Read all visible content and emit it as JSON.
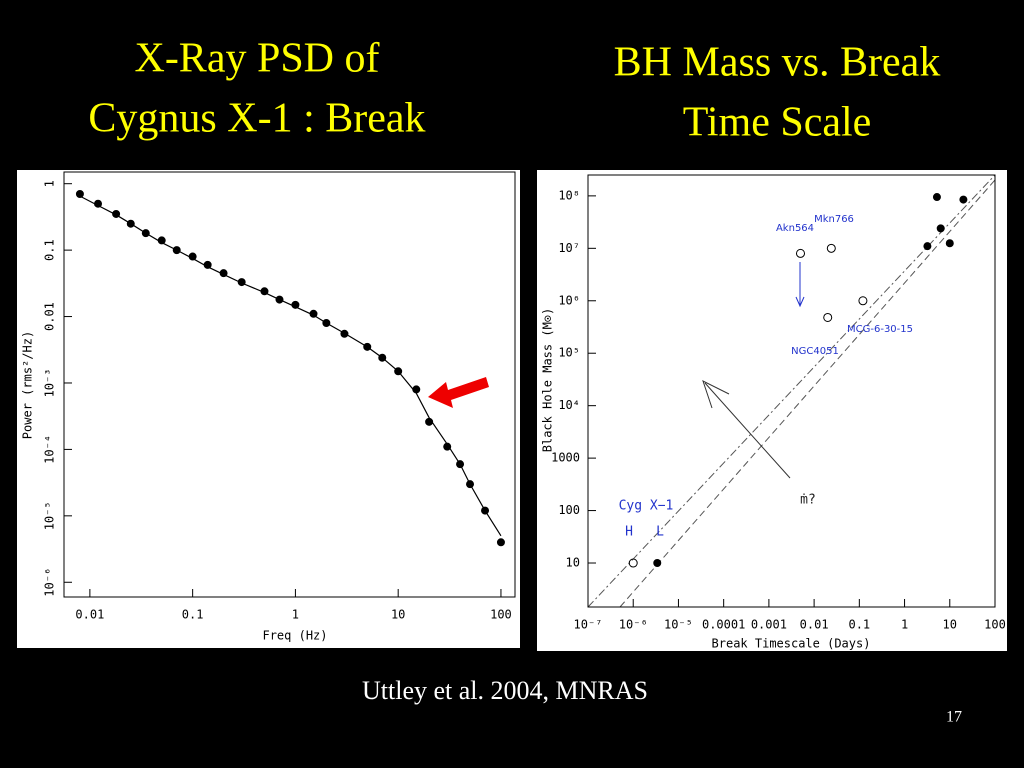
{
  "slide": {
    "title_left": [
      "X-Ray PSD of",
      "Cygnus X-1 : Break"
    ],
    "title_right": [
      "BH Mass vs. Break",
      "Time Scale"
    ],
    "citation": "Uttley et al. 2004, MNRAS",
    "page_number": "17"
  },
  "chart_data": [
    {
      "type": "scatter",
      "x_label": "Freq (Hz)",
      "y_label": "Power (rms²/Hz)",
      "xlog": true,
      "ylog": true,
      "x": [
        0.008,
        0.012,
        0.018,
        0.025,
        0.035,
        0.05,
        0.07,
        0.1,
        0.14,
        0.2,
        0.3,
        0.5,
        0.7,
        1,
        1.5,
        2,
        3,
        5,
        7,
        10,
        15,
        20,
        30,
        40,
        50,
        70,
        100
      ],
      "series": [
        {
          "color": "#000000",
          "marker": "filled",
          "values": [
            0.7,
            0.5,
            0.35,
            0.25,
            0.18,
            0.14,
            0.1,
            0.08,
            0.06,
            0.045,
            0.033,
            0.024,
            0.018,
            0.015,
            0.011,
            0.008,
            0.0055,
            0.0035,
            0.0024,
            0.0015,
            0.0008,
            0.00026,
            0.00011,
            6e-05,
            3e-05,
            1.2e-05,
            4e-06
          ]
        },
        {
          "color": "#000000",
          "marker": "line",
          "values": [
            0.65,
            0.47,
            0.34,
            0.25,
            0.18,
            0.13,
            0.1,
            0.075,
            0.056,
            0.043,
            0.032,
            0.023,
            0.018,
            0.014,
            0.0105,
            0.008,
            0.0056,
            0.0035,
            0.0024,
            0.0015,
            0.0007,
            0.0003,
            0.00012,
            6e-05,
            3e-05,
            1.2e-05,
            5e-06
          ]
        }
      ],
      "xlim": [
        0.0056,
        137
      ],
      "ylim": [
        6e-07,
        1.5
      ],
      "xticks": [
        0.01,
        0.1,
        1,
        10,
        100
      ],
      "yticks": [
        1,
        0.1,
        0.01,
        {
          "value": 0.001,
          "label": "10⁻³"
        },
        {
          "value": 0.0001,
          "label": "10⁻⁴"
        },
        {
          "value": 1e-05,
          "label": "10⁻⁵"
        },
        {
          "value": 1e-06,
          "label": "10⁻⁶"
        }
      ]
    },
    {
      "type": "scatter",
      "x_label": "Break Timescale (Days)",
      "y_label": "Black Hole Mass (M⊙)",
      "xlog": true,
      "ylog": true,
      "series": [
        {
          "color": "#000000",
          "marker": "open",
          "x": [
            1e-06,
            0.005,
            0.024,
            0.12,
            0.02
          ],
          "values": [
            10,
            8000000,
            10000000,
            1000000,
            480000
          ]
        },
        {
          "color": "#000000",
          "marker": "filled",
          "x": [
            3.4e-06,
            5.2,
            20,
            6.3,
            3.2,
            10
          ],
          "values": [
            10,
            95000000,
            85000000,
            24000000,
            11000000,
            12500000
          ]
        }
      ],
      "annotations": [
        "Akn564",
        "Mkn766",
        "MCG-6-30-15",
        "NGC4051",
        "Cyg X−1",
        "H",
        "L",
        "ṁ?"
      ],
      "xlim": [
        1e-07,
        100
      ],
      "ylim": [
        1.45,
        250000000
      ],
      "xticks": [
        {
          "value": 1e-07,
          "label": "10⁻⁷"
        },
        {
          "value": 1e-06,
          "label": "10⁻⁶"
        },
        {
          "value": 1e-05,
          "label": "10⁻⁵"
        },
        0.0001,
        0.001,
        0.01,
        0.1,
        1,
        10,
        100
      ],
      "yticks": [
        10,
        100,
        1000,
        {
          "value": 10000,
          "label": "10⁴"
        },
        {
          "value": 100000,
          "label": "10⁵"
        },
        {
          "value": 1000000,
          "label": "10⁶"
        },
        {
          "value": 10000000,
          "label": "10⁷"
        },
        {
          "value": 100000000,
          "label": "10⁸"
        }
      ]
    }
  ]
}
